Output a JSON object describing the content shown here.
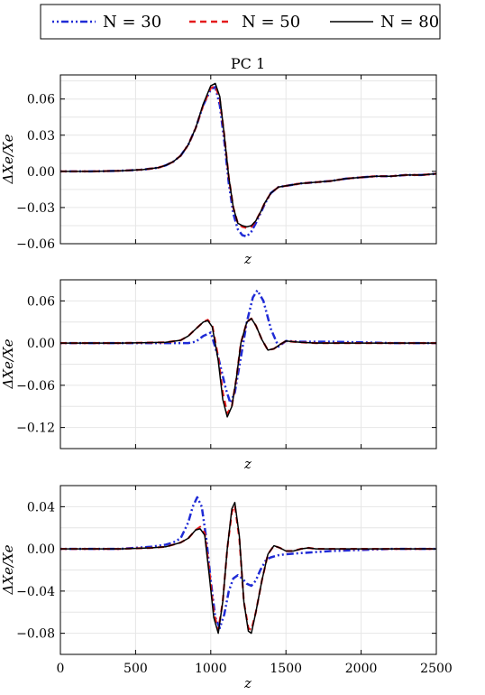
{
  "legend": {
    "entries": [
      {
        "label": "N = 30",
        "color": "#1f2bd6",
        "style": "dashdot"
      },
      {
        "label": "N = 50",
        "color": "#e41a1c",
        "style": "dashed"
      },
      {
        "label": "N = 80",
        "color": "#000000",
        "style": "solid"
      }
    ]
  },
  "chart_data": [
    {
      "type": "line",
      "title": "PC 1",
      "xlabel": "z",
      "ylabel": "ΔXe/Xe",
      "xlim": [
        0,
        2500
      ],
      "ylim": [
        -0.06,
        0.08
      ],
      "yticks": [
        -0.06,
        -0.03,
        0.0,
        0.03,
        0.06
      ],
      "ytick_labels": [
        "−0.06",
        "−0.03",
        "0.00",
        "0.03",
        "0.06"
      ],
      "show_xtick_labels": false,
      "grid": true,
      "series": [
        {
          "name": "N = 30",
          "color": "#1f2bd6",
          "style": "dashdot",
          "x": [
            0,
            200,
            400,
            550,
            650,
            700,
            750,
            800,
            850,
            900,
            950,
            1000,
            1030,
            1060,
            1090,
            1120,
            1150,
            1180,
            1210,
            1240,
            1270,
            1300,
            1330,
            1360,
            1400,
            1450,
            1500,
            1600,
            1700,
            1800,
            1900,
            2000,
            2100,
            2200,
            2300,
            2400,
            2500
          ],
          "y": [
            0,
            0,
            0.0005,
            0.0015,
            0.003,
            0.005,
            0.008,
            0.013,
            0.022,
            0.036,
            0.055,
            0.068,
            0.07,
            0.055,
            0.025,
            -0.01,
            -0.035,
            -0.048,
            -0.053,
            -0.054,
            -0.05,
            -0.043,
            -0.035,
            -0.027,
            -0.018,
            -0.013,
            -0.012,
            -0.01,
            -0.009,
            -0.008,
            -0.006,
            -0.005,
            -0.004,
            -0.004,
            -0.003,
            -0.003,
            -0.002
          ]
        },
        {
          "name": "N = 50",
          "color": "#e41a1c",
          "style": "dashed",
          "x": [
            0,
            200,
            400,
            550,
            650,
            700,
            750,
            800,
            850,
            900,
            950,
            1000,
            1030,
            1060,
            1090,
            1120,
            1150,
            1180,
            1210,
            1240,
            1270,
            1300,
            1330,
            1360,
            1400,
            1450,
            1500,
            1600,
            1700,
            1800,
            1900,
            2000,
            2100,
            2200,
            2300,
            2400,
            2500
          ],
          "y": [
            0,
            0,
            0.0005,
            0.0015,
            0.003,
            0.005,
            0.008,
            0.013,
            0.022,
            0.036,
            0.055,
            0.069,
            0.071,
            0.06,
            0.03,
            -0.005,
            -0.03,
            -0.043,
            -0.046,
            -0.047,
            -0.046,
            -0.041,
            -0.034,
            -0.026,
            -0.018,
            -0.013,
            -0.012,
            -0.01,
            -0.009,
            -0.008,
            -0.006,
            -0.005,
            -0.004,
            -0.004,
            -0.003,
            -0.003,
            -0.002
          ]
        },
        {
          "name": "N = 80",
          "color": "#000000",
          "style": "solid",
          "x": [
            0,
            200,
            400,
            550,
            650,
            700,
            750,
            800,
            850,
            900,
            950,
            1000,
            1030,
            1060,
            1090,
            1120,
            1150,
            1180,
            1210,
            1240,
            1270,
            1300,
            1330,
            1360,
            1400,
            1450,
            1500,
            1600,
            1700,
            1800,
            1900,
            2000,
            2100,
            2200,
            2300,
            2400,
            2500
          ],
          "y": [
            0,
            0,
            0.0005,
            0.0015,
            0.003,
            0.005,
            0.008,
            0.013,
            0.022,
            0.036,
            0.056,
            0.071,
            0.073,
            0.062,
            0.03,
            -0.005,
            -0.03,
            -0.043,
            -0.045,
            -0.046,
            -0.045,
            -0.041,
            -0.034,
            -0.026,
            -0.018,
            -0.013,
            -0.012,
            -0.01,
            -0.009,
            -0.008,
            -0.006,
            -0.005,
            -0.004,
            -0.004,
            -0.003,
            -0.003,
            -0.002
          ]
        }
      ]
    },
    {
      "type": "line",
      "title": "",
      "xlabel": "z",
      "ylabel": "ΔXe/Xe",
      "xlim": [
        0,
        2500
      ],
      "ylim": [
        -0.15,
        0.09
      ],
      "yticks": [
        -0.12,
        -0.06,
        0.0,
        0.06
      ],
      "ytick_labels": [
        "−0.12",
        "−0.06",
        "0.00",
        "0.06"
      ],
      "show_xtick_labels": false,
      "grid": true,
      "series": [
        {
          "name": "N = 30",
          "color": "#1f2bd6",
          "style": "dashdot",
          "x": [
            0,
            400,
            700,
            800,
            850,
            900,
            950,
            1000,
            1050,
            1100,
            1130,
            1160,
            1200,
            1240,
            1280,
            1310,
            1350,
            1400,
            1450,
            1500,
            1600,
            1700,
            1800,
            2000,
            2200,
            2500
          ],
          "y": [
            0,
            0,
            0,
            0,
            0,
            0.002,
            0.01,
            0.015,
            -0.02,
            -0.065,
            -0.085,
            -0.07,
            -0.02,
            0.03,
            0.065,
            0.075,
            0.06,
            0.02,
            -0.005,
            0.003,
            0.002,
            0.002,
            0.002,
            0.001,
            0,
            0
          ]
        },
        {
          "name": "N = 50",
          "color": "#e41a1c",
          "style": "dashed",
          "x": [
            0,
            400,
            700,
            800,
            850,
            900,
            950,
            980,
            1010,
            1050,
            1080,
            1110,
            1140,
            1170,
            1200,
            1240,
            1270,
            1300,
            1340,
            1380,
            1420,
            1460,
            1500,
            1550,
            1600,
            1700,
            1800,
            2000,
            2200,
            2500
          ],
          "y": [
            0,
            0,
            0.001,
            0.004,
            0.01,
            0.02,
            0.03,
            0.033,
            0.025,
            -0.02,
            -0.07,
            -0.1,
            -0.09,
            -0.05,
            0,
            0.03,
            0.035,
            0.025,
            0.005,
            -0.01,
            -0.008,
            -0.002,
            0.003,
            0.002,
            0.001,
            0,
            0,
            0,
            0,
            0
          ]
        },
        {
          "name": "N = 80",
          "color": "#000000",
          "style": "solid",
          "x": [
            0,
            400,
            700,
            800,
            850,
            900,
            950,
            980,
            1010,
            1050,
            1080,
            1110,
            1140,
            1170,
            1200,
            1240,
            1270,
            1300,
            1340,
            1380,
            1420,
            1460,
            1500,
            1550,
            1600,
            1700,
            1800,
            2000,
            2200,
            2500
          ],
          "y": [
            0,
            0,
            0.001,
            0.004,
            0.01,
            0.02,
            0.03,
            0.032,
            0.023,
            -0.025,
            -0.08,
            -0.105,
            -0.09,
            -0.05,
            0,
            0.03,
            0.035,
            0.025,
            0.005,
            -0.01,
            -0.008,
            -0.002,
            0.003,
            0.002,
            0.001,
            0,
            0,
            0,
            0,
            0
          ]
        }
      ]
    },
    {
      "type": "line",
      "title": "",
      "xlabel": "z",
      "ylabel": "ΔXe/Xe",
      "xlim": [
        0,
        2500
      ],
      "ylim": [
        -0.1,
        0.06
      ],
      "xticks": [
        0,
        500,
        1000,
        1500,
        2000,
        2500
      ],
      "xtick_labels": [
        "0",
        "500",
        "1000",
        "1500",
        "2000",
        "2500"
      ],
      "yticks": [
        -0.08,
        -0.04,
        0.0,
        0.04
      ],
      "ytick_labels": [
        "−0.08",
        "−0.04",
        "0.00",
        "0.04"
      ],
      "show_xtick_labels": true,
      "grid": true,
      "series": [
        {
          "name": "N = 30",
          "color": "#1f2bd6",
          "style": "dashdot",
          "x": [
            0,
            400,
            600,
            700,
            750,
            800,
            850,
            880,
            910,
            940,
            970,
            1000,
            1030,
            1060,
            1090,
            1120,
            1150,
            1180,
            1210,
            1240,
            1270,
            1300,
            1330,
            1370,
            1400,
            1450,
            1500,
            1600,
            1700,
            1800,
            2000,
            2200,
            2500
          ],
          "y": [
            0,
            0,
            0.002,
            0.004,
            0.006,
            0.01,
            0.025,
            0.04,
            0.049,
            0.04,
            0.01,
            -0.03,
            -0.065,
            -0.075,
            -0.062,
            -0.04,
            -0.028,
            -0.025,
            -0.028,
            -0.033,
            -0.035,
            -0.03,
            -0.02,
            -0.01,
            -0.008,
            -0.006,
            -0.005,
            -0.004,
            -0.003,
            -0.002,
            -0.001,
            0,
            0
          ]
        },
        {
          "name": "N = 50",
          "color": "#e41a1c",
          "style": "dashed",
          "x": [
            0,
            400,
            600,
            700,
            800,
            850,
            900,
            930,
            960,
            990,
            1020,
            1050,
            1080,
            1110,
            1140,
            1160,
            1190,
            1220,
            1250,
            1270,
            1300,
            1340,
            1380,
            1420,
            1460,
            1500,
            1550,
            1600,
            1650,
            1700,
            1800,
            2000,
            2200,
            2500
          ],
          "y": [
            0,
            0,
            0.001,
            0.002,
            0.006,
            0.01,
            0.018,
            0.021,
            0.015,
            -0.02,
            -0.06,
            -0.077,
            -0.05,
            0,
            0.035,
            0.041,
            0.01,
            -0.05,
            -0.075,
            -0.077,
            -0.06,
            -0.03,
            -0.005,
            0.003,
            0.001,
            -0.002,
            -0.002,
            0,
            0.001,
            0,
            0,
            0,
            0,
            0
          ]
        },
        {
          "name": "N = 80",
          "color": "#000000",
          "style": "solid",
          "x": [
            0,
            400,
            600,
            700,
            800,
            850,
            900,
            930,
            960,
            990,
            1020,
            1050,
            1080,
            1110,
            1140,
            1160,
            1190,
            1220,
            1250,
            1270,
            1300,
            1340,
            1380,
            1420,
            1460,
            1500,
            1550,
            1600,
            1650,
            1700,
            1800,
            2000,
            2200,
            2500
          ],
          "y": [
            0,
            0,
            0.001,
            0.002,
            0.006,
            0.01,
            0.018,
            0.019,
            0.013,
            -0.025,
            -0.065,
            -0.08,
            -0.05,
            0,
            0.038,
            0.044,
            0.012,
            -0.05,
            -0.078,
            -0.08,
            -0.06,
            -0.03,
            -0.005,
            0.003,
            0.001,
            -0.002,
            -0.002,
            0,
            0.001,
            0,
            0,
            0,
            0,
            0
          ]
        }
      ]
    }
  ]
}
